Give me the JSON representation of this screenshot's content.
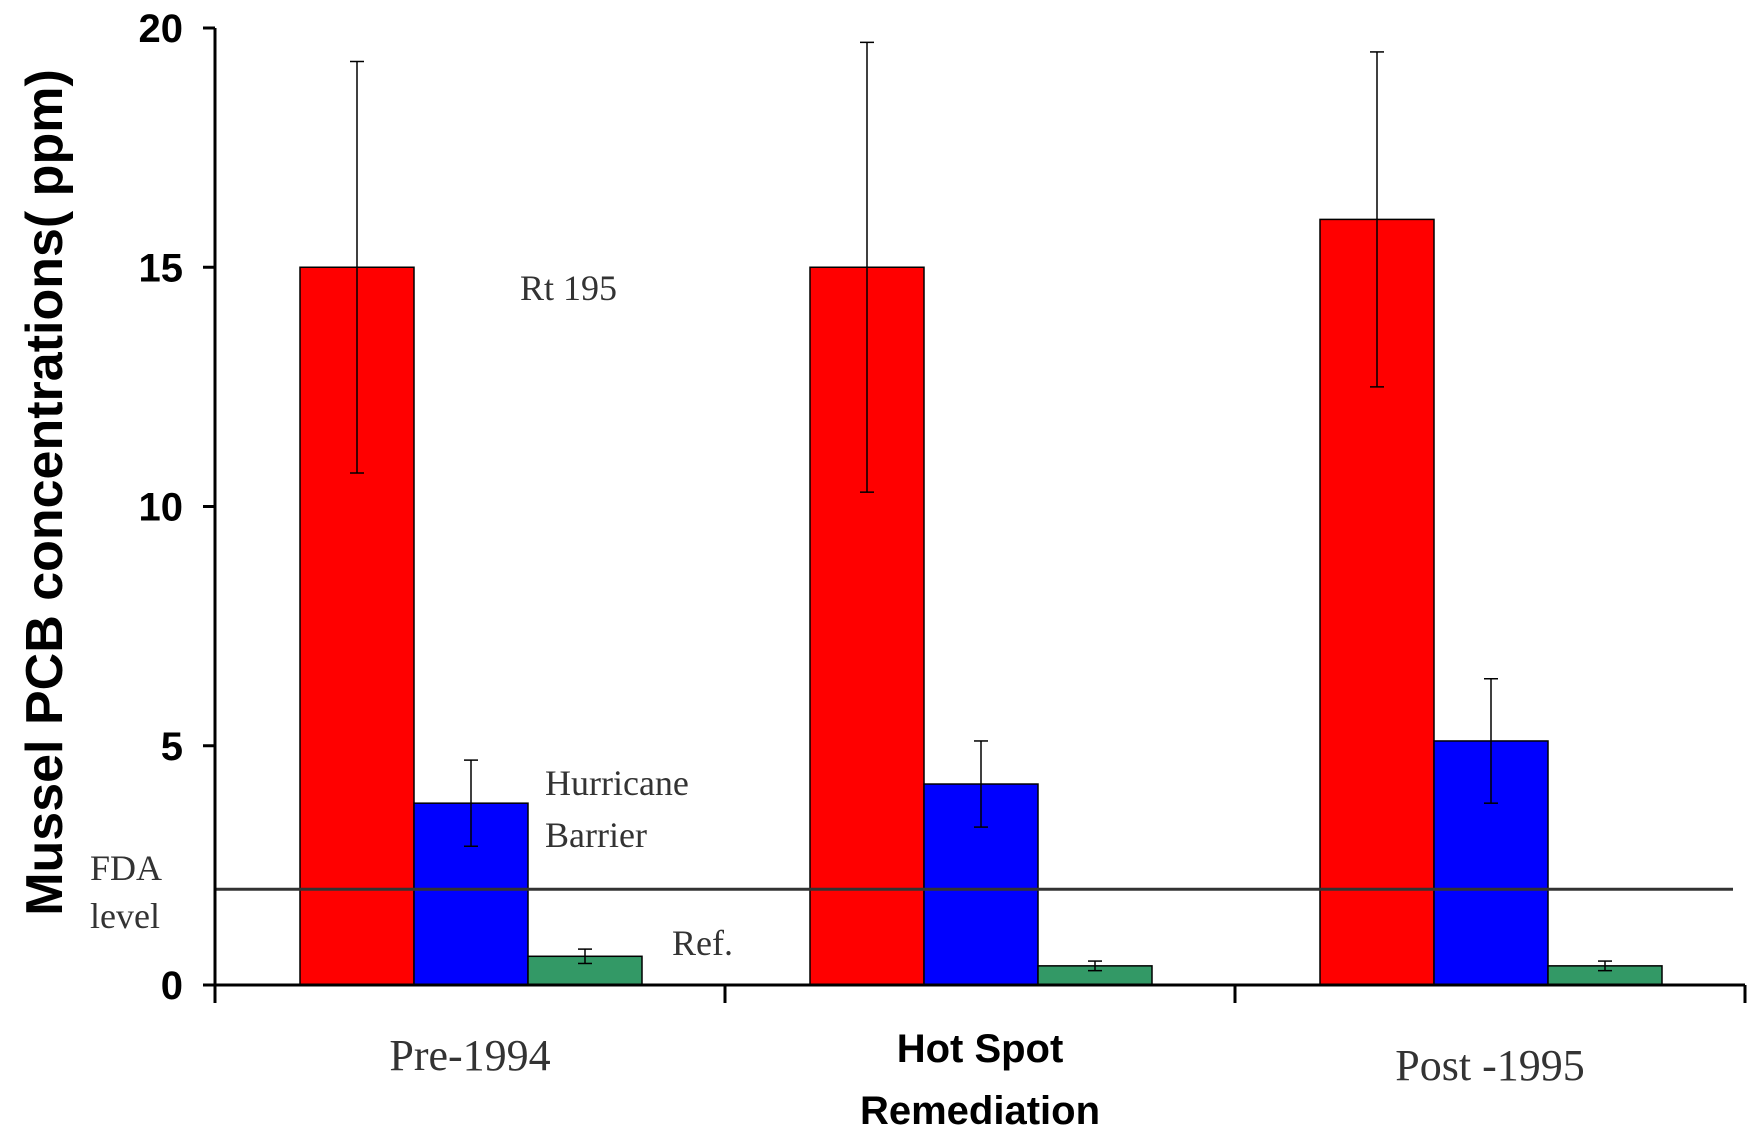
{
  "chart_data": {
    "type": "bar",
    "ylabel": "Mussel PCB concentrations( ppm)",
    "ylim": [
      0,
      20
    ],
    "yticks": [
      0,
      5,
      10,
      15,
      20
    ],
    "categories": [
      {
        "lines": [
          "Pre-1994"
        ],
        "style": "serif"
      },
      {
        "lines": [
          "Hot Spot",
          "Remediation"
        ],
        "style": "bold"
      },
      {
        "lines": [
          "Post -1995"
        ],
        "style": "serif"
      }
    ],
    "series": [
      {
        "name": "Rt 195",
        "color": "#ff0000",
        "values": [
          15.0,
          15.0,
          16.0
        ],
        "err_low": [
          10.7,
          10.3,
          12.5
        ],
        "err_high": [
          19.3,
          19.7,
          19.5
        ]
      },
      {
        "name": "Hurricane Barrier",
        "color": "#0000ff",
        "values": [
          3.8,
          4.2,
          5.1
        ],
        "err_low": [
          2.9,
          3.3,
          3.8
        ],
        "err_high": [
          4.7,
          5.1,
          6.4
        ]
      },
      {
        "name": "Ref.",
        "color": "#339966",
        "values": [
          0.6,
          0.4,
          0.4
        ],
        "err_low": [
          0.45,
          0.3,
          0.3
        ],
        "err_high": [
          0.75,
          0.5,
          0.5
        ]
      }
    ],
    "reference_line": {
      "label_lines": [
        "FDA",
        "level"
      ],
      "value": 2.0,
      "color": "#333333"
    },
    "annotations": [
      {
        "lines": [
          "Rt 195"
        ],
        "series": "Rt 195"
      },
      {
        "lines": [
          "Hurricane",
          "Barrier"
        ],
        "series": "Hurricane Barrier"
      },
      {
        "lines": [
          "Ref."
        ],
        "series": "Ref."
      }
    ],
    "grid": false,
    "legend": "none"
  }
}
